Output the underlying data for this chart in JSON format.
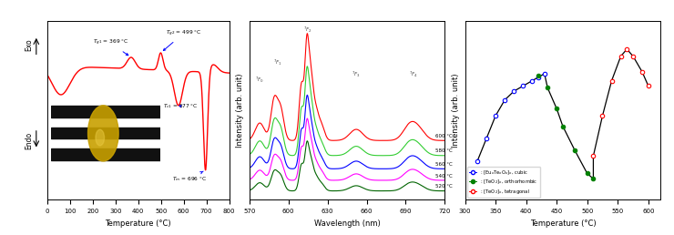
{
  "fig_width": 7.4,
  "fig_height": 2.58,
  "dpi": 100,
  "panel1": {
    "xlim": [
      0,
      800
    ],
    "xticks": [
      0,
      100,
      200,
      300,
      400,
      500,
      600,
      700,
      800
    ],
    "xlabel": "Temperature (°C)"
  },
  "panel2": {
    "xlim": [
      570,
      720
    ],
    "xticks": [
      570,
      600,
      630,
      660,
      690,
      720
    ],
    "xlabel": "Wavelength (nm)",
    "ylabel": "Intensity (arb. unit)",
    "colors": [
      "red",
      "limegreen",
      "blue",
      "magenta",
      "darkgreen"
    ],
    "temp_labels": [
      "600 °C",
      "580 °C",
      "560 °C",
      "540 °C",
      "520 °C"
    ]
  },
  "panel3": {
    "xlim": [
      300,
      620
    ],
    "xticks": [
      300,
      350,
      400,
      450,
      500,
      550,
      600
    ],
    "xlabel": "Temperature (°C)",
    "ylabel": "Intensity (arb. unit)",
    "blue_x": [
      320,
      335,
      350,
      365,
      380,
      395,
      410,
      420,
      430
    ],
    "blue_y": [
      0.22,
      0.35,
      0.48,
      0.57,
      0.62,
      0.65,
      0.68,
      0.7,
      0.72
    ],
    "green_x": [
      420,
      435,
      450,
      460,
      480,
      500,
      510
    ],
    "green_y": [
      0.71,
      0.64,
      0.52,
      0.42,
      0.28,
      0.15,
      0.12
    ],
    "red_x": [
      510,
      525,
      540,
      555,
      565,
      575,
      590,
      600
    ],
    "red_y": [
      0.25,
      0.48,
      0.68,
      0.82,
      0.86,
      0.82,
      0.73,
      0.65
    ]
  }
}
